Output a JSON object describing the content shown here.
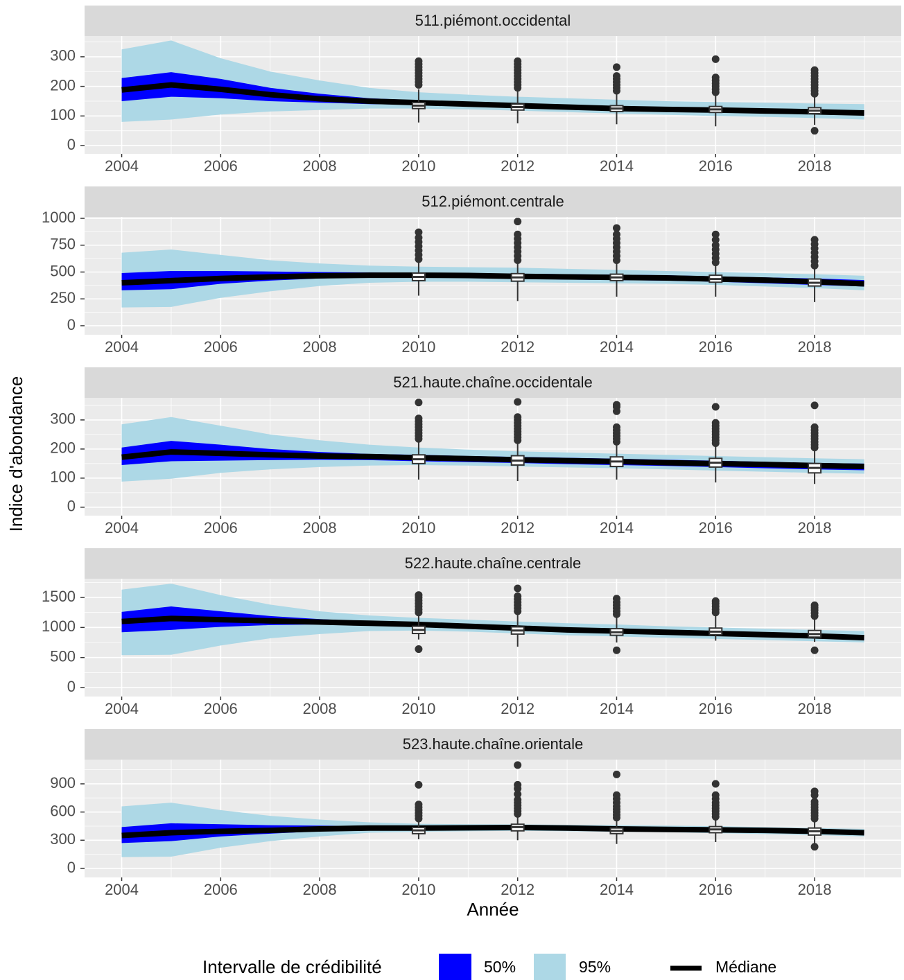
{
  "y_label": "Indice d'abondance",
  "x_label": "Année",
  "legend": {
    "title": "Intervalle de crédibilité",
    "items": [
      {
        "label": "50%",
        "color": "#0000ff"
      },
      {
        "label": "95%",
        "color": "#add8e6"
      },
      {
        "label": "Médiane",
        "color": "#000000"
      }
    ]
  },
  "chart_data": [
    {
      "type": "line",
      "title": "511.piémont.occidental",
      "x": [
        2004,
        2005,
        2006,
        2007,
        2008,
        2009,
        2010,
        2011,
        2012,
        2013,
        2014,
        2015,
        2016,
        2017,
        2018,
        2019
      ],
      "median": [
        188,
        205,
        190,
        172,
        158,
        150,
        145,
        140,
        135,
        130,
        125,
        122,
        120,
        117,
        114,
        110
      ],
      "band95": {
        "lower": [
          80,
          88,
          105,
          115,
          120,
          125,
          125,
          122,
          118,
          113,
          108,
          104,
          100,
          97,
          93,
          88
        ],
        "upper": [
          325,
          355,
          295,
          250,
          220,
          195,
          180,
          172,
          165,
          160,
          155,
          150,
          147,
          145,
          142,
          140
        ]
      },
      "band50": {
        "lower": [
          150,
          165,
          160,
          150,
          145,
          140,
          138,
          133,
          128,
          123,
          118,
          115,
          112,
          109,
          106,
          102
        ],
        "upper": [
          228,
          248,
          225,
          195,
          175,
          160,
          153,
          148,
          143,
          138,
          133,
          130,
          127,
          124,
          121,
          118
        ]
      },
      "boxplots": [
        {
          "x": 2010,
          "whisker_low": 78,
          "q1": 125,
          "median": 135,
          "q3": 145,
          "whisker_high": 190,
          "outliers": [
            205,
            215,
            225,
            235,
            245,
            255,
            265,
            275,
            285
          ]
        },
        {
          "x": 2012,
          "whisker_low": 75,
          "q1": 120,
          "median": 130,
          "q3": 140,
          "whisker_high": 185,
          "outliers": [
            195,
            205,
            215,
            225,
            235,
            245,
            255,
            265,
            275,
            285
          ]
        },
        {
          "x": 2014,
          "whisker_low": 72,
          "q1": 115,
          "median": 125,
          "q3": 135,
          "whisker_high": 175,
          "outliers": [
            185,
            195,
            205,
            215,
            225,
            235,
            265
          ]
        },
        {
          "x": 2016,
          "whisker_low": 65,
          "q1": 112,
          "median": 122,
          "q3": 132,
          "whisker_high": 170,
          "outliers": [
            180,
            190,
            200,
            210,
            220,
            230,
            292
          ]
        },
        {
          "x": 2018,
          "whisker_low": 70,
          "q1": 108,
          "median": 118,
          "q3": 128,
          "whisker_high": 165,
          "outliers": [
            50,
            175,
            185,
            195,
            205,
            215,
            225,
            235,
            245,
            255
          ]
        }
      ],
      "xlim": [
        2003.25,
        2019.75
      ],
      "xticks": [
        2004,
        2006,
        2008,
        2010,
        2012,
        2014,
        2016,
        2018
      ],
      "ylim": [
        -28,
        370
      ],
      "yticks": [
        0,
        100,
        200,
        300
      ],
      "grid": true
    },
    {
      "type": "line",
      "title": "512.piémont.centrale",
      "x": [
        2004,
        2005,
        2006,
        2007,
        2008,
        2009,
        2010,
        2011,
        2012,
        2013,
        2014,
        2015,
        2016,
        2017,
        2018,
        2019
      ],
      "median": [
        400,
        420,
        440,
        455,
        465,
        470,
        470,
        468,
        460,
        455,
        450,
        445,
        435,
        425,
        410,
        390
      ],
      "band95": {
        "lower": [
          170,
          175,
          260,
          320,
          370,
          400,
          410,
          410,
          405,
          400,
          395,
          390,
          380,
          365,
          350,
          330
        ],
        "upper": [
          680,
          710,
          660,
          610,
          580,
          560,
          550,
          545,
          540,
          530,
          520,
          510,
          500,
          490,
          480,
          465
        ]
      },
      "band50": {
        "lower": [
          330,
          340,
          390,
          420,
          440,
          450,
          450,
          445,
          440,
          430,
          425,
          420,
          410,
          395,
          380,
          365
        ],
        "upper": [
          490,
          510,
          510,
          505,
          500,
          495,
          490,
          488,
          485,
          480,
          475,
          470,
          460,
          450,
          440,
          425
        ]
      },
      "boxplots": [
        {
          "x": 2010,
          "whisker_low": 280,
          "q1": 420,
          "median": 455,
          "q3": 490,
          "whisker_high": 600,
          "outliers": [
            620,
            660,
            700,
            740,
            780,
            820,
            870
          ]
        },
        {
          "x": 2012,
          "whisker_low": 230,
          "q1": 415,
          "median": 450,
          "q3": 485,
          "whisker_high": 590,
          "outliers": [
            610,
            650,
            690,
            730,
            770,
            810,
            850,
            970
          ]
        },
        {
          "x": 2014,
          "whisker_low": 270,
          "q1": 420,
          "median": 450,
          "q3": 480,
          "whisker_high": 590,
          "outliers": [
            610,
            650,
            690,
            730,
            770,
            810,
            850,
            910
          ]
        },
        {
          "x": 2016,
          "whisker_low": 270,
          "q1": 405,
          "median": 435,
          "q3": 470,
          "whisker_high": 570,
          "outliers": [
            590,
            630,
            670,
            710,
            750,
            800,
            850
          ]
        },
        {
          "x": 2018,
          "whisker_low": 220,
          "q1": 370,
          "median": 400,
          "q3": 435,
          "whisker_high": 540,
          "outliers": [
            560,
            600,
            640,
            680,
            720,
            760,
            800
          ]
        }
      ],
      "xlim": [
        2003.25,
        2019.75
      ],
      "xticks": [
        2004,
        2006,
        2008,
        2010,
        2012,
        2014,
        2016,
        2018
      ],
      "ylim": [
        -84,
        1013
      ],
      "yticks": [
        0,
        250,
        500,
        750,
        1000
      ],
      "grid": true
    },
    {
      "type": "line",
      "title": "521.haute.chaîne.occidentale",
      "x": [
        2004,
        2005,
        2006,
        2007,
        2008,
        2009,
        2010,
        2011,
        2012,
        2013,
        2014,
        2015,
        2016,
        2017,
        2018,
        2019
      ],
      "median": [
        172,
        190,
        185,
        180,
        176,
        174,
        170,
        167,
        163,
        160,
        157,
        153,
        150,
        147,
        143,
        140
      ],
      "band95": {
        "lower": [
          88,
          98,
          118,
          130,
          138,
          143,
          145,
          143,
          140,
          137,
          134,
          130,
          126,
          122,
          118,
          115
        ],
        "upper": [
          285,
          310,
          280,
          250,
          230,
          215,
          205,
          198,
          192,
          188,
          184,
          180,
          176,
          172,
          168,
          165
        ]
      },
      "band50": {
        "lower": [
          145,
          158,
          160,
          162,
          163,
          162,
          158,
          155,
          152,
          148,
          145,
          142,
          138,
          134,
          130,
          127
        ],
        "upper": [
          205,
          228,
          215,
          200,
          190,
          183,
          180,
          176,
          173,
          170,
          167,
          163,
          160,
          156,
          152,
          150
        ]
      },
      "boxplots": [
        {
          "x": 2010,
          "whisker_low": 95,
          "q1": 150,
          "median": 165,
          "q3": 180,
          "whisker_high": 225,
          "outliers": [
            235,
            245,
            255,
            265,
            275,
            285,
            295,
            305,
            360
          ]
        },
        {
          "x": 2012,
          "whisker_low": 90,
          "q1": 145,
          "median": 160,
          "q3": 177,
          "whisker_high": 220,
          "outliers": [
            230,
            240,
            250,
            260,
            270,
            280,
            290,
            300,
            310,
            362
          ]
        },
        {
          "x": 2014,
          "whisker_low": 95,
          "q1": 140,
          "median": 157,
          "q3": 173,
          "whisker_high": 215,
          "outliers": [
            225,
            235,
            245,
            255,
            265,
            275,
            330,
            345,
            352
          ]
        },
        {
          "x": 2016,
          "whisker_low": 85,
          "q1": 138,
          "median": 153,
          "q3": 168,
          "whisker_high": 210,
          "outliers": [
            220,
            230,
            240,
            250,
            260,
            270,
            280,
            290,
            345
          ]
        },
        {
          "x": 2018,
          "whisker_low": 80,
          "q1": 118,
          "median": 135,
          "q3": 150,
          "whisker_high": 195,
          "outliers": [
            205,
            215,
            225,
            235,
            245,
            255,
            265,
            275,
            350
          ]
        }
      ],
      "xlim": [
        2003.25,
        2019.75
      ],
      "xticks": [
        2004,
        2006,
        2008,
        2010,
        2012,
        2014,
        2016,
        2018
      ],
      "ylim": [
        -29,
        376
      ],
      "yticks": [
        0,
        100,
        200,
        300
      ],
      "grid": true
    },
    {
      "type": "line",
      "title": "522.haute.chaîne.centrale",
      "x": [
        2004,
        2005,
        2006,
        2007,
        2008,
        2009,
        2010,
        2011,
        2012,
        2013,
        2014,
        2015,
        2016,
        2017,
        2018,
        2019
      ],
      "median": [
        1100,
        1150,
        1130,
        1110,
        1090,
        1070,
        1050,
        1020,
        990,
        960,
        940,
        920,
        900,
        880,
        860,
        830
      ],
      "band95": {
        "lower": [
          540,
          545,
          700,
          820,
          890,
          940,
          950,
          930,
          900,
          870,
          850,
          830,
          810,
          790,
          770,
          750
        ],
        "upper": [
          1630,
          1730,
          1540,
          1380,
          1270,
          1200,
          1160,
          1130,
          1100,
          1070,
          1050,
          1020,
          1000,
          980,
          960,
          940
        ]
      },
      "band50": {
        "lower": [
          920,
          960,
          1010,
          1040,
          1050,
          1040,
          1010,
          980,
          950,
          920,
          900,
          880,
          860,
          840,
          820,
          790
        ],
        "upper": [
          1260,
          1350,
          1270,
          1190,
          1140,
          1100,
          1080,
          1060,
          1030,
          1000,
          980,
          960,
          940,
          920,
          900,
          870
        ]
      },
      "boxplots": [
        {
          "x": 2010,
          "whisker_low": 800,
          "q1": 900,
          "median": 960,
          "q3": 1020,
          "whisker_high": 1200,
          "outliers": [
            640,
            1250,
            1300,
            1350,
            1400,
            1450,
            1500,
            1540
          ]
        },
        {
          "x": 2012,
          "whisker_low": 680,
          "q1": 890,
          "median": 950,
          "q3": 1010,
          "whisker_high": 1220,
          "outliers": [
            1270,
            1320,
            1370,
            1420,
            1470,
            1520,
            1650
          ]
        },
        {
          "x": 2014,
          "whisker_low": 750,
          "q1": 870,
          "median": 920,
          "q3": 980,
          "whisker_high": 1180,
          "outliers": [
            620,
            1220,
            1270,
            1320,
            1370,
            1420,
            1480
          ]
        },
        {
          "x": 2016,
          "whisker_low": 780,
          "q1": 880,
          "median": 930,
          "q3": 990,
          "whisker_high": 1200,
          "outliers": [
            1250,
            1300,
            1350,
            1400,
            1440
          ]
        },
        {
          "x": 2018,
          "whisker_low": 760,
          "q1": 840,
          "median": 890,
          "q3": 950,
          "whisker_high": 1140,
          "outliers": [
            620,
            1190,
            1240,
            1290,
            1330,
            1370
          ]
        }
      ],
      "xlim": [
        2003.25,
        2019.75
      ],
      "xticks": [
        2004,
        2006,
        2008,
        2010,
        2012,
        2014,
        2016,
        2018
      ],
      "ylim": [
        -150,
        1812
      ],
      "yticks": [
        0,
        500,
        1000,
        1500
      ],
      "grid": true
    },
    {
      "type": "line",
      "title": "523.haute.chaîne.orientale",
      "x": [
        2004,
        2005,
        2006,
        2007,
        2008,
        2009,
        2010,
        2011,
        2012,
        2013,
        2014,
        2015,
        2016,
        2017,
        2018,
        2019
      ],
      "median": [
        350,
        380,
        395,
        405,
        420,
        430,
        430,
        432,
        435,
        430,
        420,
        415,
        410,
        405,
        395,
        380
      ],
      "band95": {
        "lower": [
          120,
          125,
          220,
          290,
          340,
          380,
          390,
          395,
          400,
          395,
          390,
          385,
          375,
          365,
          355,
          340
        ],
        "upper": [
          660,
          700,
          620,
          560,
          520,
          490,
          475,
          470,
          468,
          465,
          460,
          455,
          450,
          440,
          430,
          420
        ]
      },
      "band50": {
        "lower": [
          270,
          290,
          340,
          370,
          395,
          410,
          410,
          410,
          412,
          408,
          400,
          395,
          390,
          380,
          370,
          360
        ],
        "upper": [
          440,
          480,
          470,
          460,
          455,
          450,
          450,
          452,
          455,
          450,
          440,
          435,
          430,
          425,
          418,
          405
        ]
      },
      "boxplots": [
        {
          "x": 2010,
          "whisker_low": 310,
          "q1": 370,
          "median": 405,
          "q3": 435,
          "whisker_high": 510,
          "outliers": [
            530,
            560,
            590,
            620,
            650,
            680,
            890
          ]
        },
        {
          "x": 2012,
          "whisker_low": 300,
          "q1": 400,
          "median": 440,
          "q3": 470,
          "whisker_high": 560,
          "outliers": [
            580,
            610,
            640,
            670,
            700,
            730,
            790,
            850,
            890,
            1100
          ]
        },
        {
          "x": 2014,
          "whisker_low": 260,
          "q1": 370,
          "median": 400,
          "q3": 430,
          "whisker_high": 520,
          "outliers": [
            540,
            570,
            600,
            630,
            660,
            700,
            740,
            780,
            1000
          ]
        },
        {
          "x": 2016,
          "whisker_low": 280,
          "q1": 380,
          "median": 415,
          "q3": 445,
          "whisker_high": 530,
          "outliers": [
            550,
            580,
            610,
            640,
            670,
            700,
            740,
            780,
            900
          ]
        },
        {
          "x": 2018,
          "whisker_low": 260,
          "q1": 355,
          "median": 395,
          "q3": 430,
          "whisker_high": 510,
          "outliers": [
            230,
            530,
            560,
            590,
            620,
            650,
            680,
            710,
            780,
            820
          ]
        }
      ],
      "xlim": [
        2003.25,
        2019.75
      ],
      "xticks": [
        2004,
        2006,
        2008,
        2010,
        2012,
        2014,
        2016,
        2018
      ],
      "ylim": [
        -96,
        1158
      ],
      "yticks": [
        0,
        300,
        600,
        900
      ],
      "grid": true
    }
  ]
}
